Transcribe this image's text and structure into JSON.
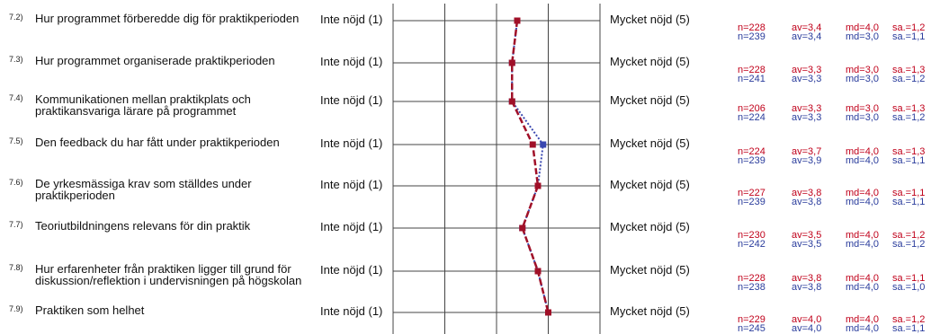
{
  "scale": {
    "left_label": "Inte nöjd (1)",
    "right_label": "Mycket nöjd (5)",
    "min": 1,
    "max": 5
  },
  "colors": {
    "series1": "#a01028",
    "series2": "#3a48b0",
    "grid": "#444444"
  },
  "questions": [
    {
      "num": "7.2)",
      "text": "Hur programmet förberedde dig för praktikperioden",
      "s1": {
        "n": "n=228",
        "av": "av=3,4",
        "md": "md=4,0",
        "sa": "sa.=1,2",
        "value": 3.4
      },
      "s2": {
        "n": "n=239",
        "av": "av=3,4",
        "md": "md=3,0",
        "sa": "sa.=1,1",
        "value": 3.4
      }
    },
    {
      "num": "7.3)",
      "text": "Hur programmet organiserade praktikperioden",
      "s1": {
        "n": "n=228",
        "av": "av=3,3",
        "md": "md=3,0",
        "sa": "sa.=1,3",
        "value": 3.3
      },
      "s2": {
        "n": "n=241",
        "av": "av=3,3",
        "md": "md=3,0",
        "sa": "sa.=1,2",
        "value": 3.3
      }
    },
    {
      "num": "7.4)",
      "text": "Kommunikationen mellan praktikplats och praktikansvariga lärare på programmet",
      "s1": {
        "n": "n=206",
        "av": "av=3,3",
        "md": "md=3,0",
        "sa": "sa.=1,3",
        "value": 3.3
      },
      "s2": {
        "n": "n=224",
        "av": "av=3,3",
        "md": "md=3,0",
        "sa": "sa.=1,2",
        "value": 3.3
      }
    },
    {
      "num": "7.5)",
      "text": "Den feedback du har fått under praktikperioden",
      "s1": {
        "n": "n=224",
        "av": "av=3,7",
        "md": "md=4,0",
        "sa": "sa.=1,3",
        "value": 3.7
      },
      "s2": {
        "n": "n=239",
        "av": "av=3,9",
        "md": "md=4,0",
        "sa": "sa.=1,1",
        "value": 3.9
      }
    },
    {
      "num": "7.6)",
      "text": "De yrkesmässiga krav som ställdes under praktikperioden",
      "s1": {
        "n": "n=227",
        "av": "av=3,8",
        "md": "md=4,0",
        "sa": "sa.=1,1",
        "value": 3.8
      },
      "s2": {
        "n": "n=239",
        "av": "av=3,8",
        "md": "md=4,0",
        "sa": "sa.=1,1",
        "value": 3.8
      }
    },
    {
      "num": "7.7)",
      "text": "Teoriutbildningens relevans för din praktik",
      "s1": {
        "n": "n=230",
        "av": "av=3,5",
        "md": "md=4,0",
        "sa": "sa.=1,2",
        "value": 3.5
      },
      "s2": {
        "n": "n=242",
        "av": "av=3,5",
        "md": "md=4,0",
        "sa": "sa.=1,2",
        "value": 3.5
      }
    },
    {
      "num": "7.8)",
      "text": "Hur erfarenheter från praktiken ligger till grund för diskussion/reflektion i undervisningen på högskolan",
      "s1": {
        "n": "n=228",
        "av": "av=3,8",
        "md": "md=4,0",
        "sa": "sa.=1,1",
        "value": 3.8
      },
      "s2": {
        "n": "n=238",
        "av": "av=3,8",
        "md": "md=4,0",
        "sa": "sa.=1,0",
        "value": 3.8
      }
    },
    {
      "num": "7.9)",
      "text": "Praktiken som helhet",
      "s1": {
        "n": "n=229",
        "av": "av=4,0",
        "md": "md=4,0",
        "sa": "sa.=1,2",
        "value": 4.0
      },
      "s2": {
        "n": "n=245",
        "av": "av=4,0",
        "md": "md=4,0",
        "sa": "sa.=1,1",
        "value": 4.0
      }
    }
  ]
}
